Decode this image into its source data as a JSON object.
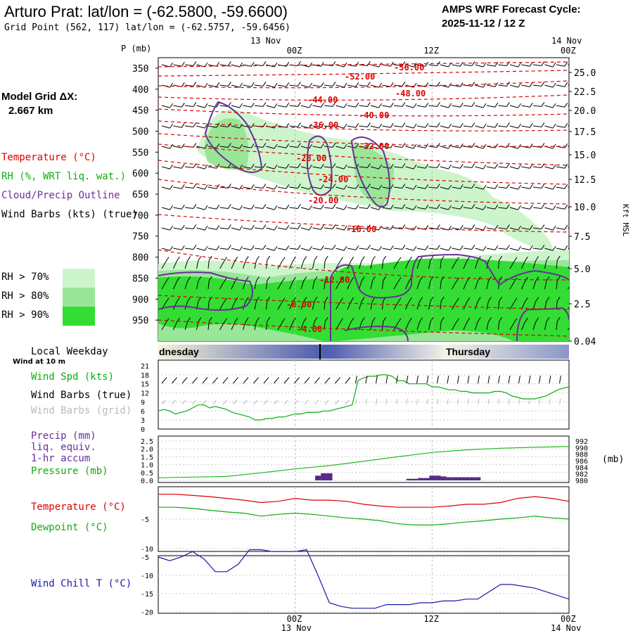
{
  "header": {
    "station_title": "Arturo Prat:  lat/lon = (-62.5800, -59.6600)",
    "grid_point": "Grid Point (562, 117) lat/lon = (-62.5757, -59.6456)",
    "forecast_label": "AMPS WRF Forecast Cycle:",
    "forecast_cycle": "2025-11-12 / 12  Z",
    "model_grid_label": "Model Grid ΔX:",
    "model_grid_value": "2.667 km"
  },
  "legend": {
    "temperature": "Temperature (°C)",
    "rh": "RH (%, WRT liq. wat.)",
    "cloud": "Cloud/Precip Outline",
    "wind_barbs": "Wind Barbs (kts) (true)",
    "rh70": "RH > 70%",
    "rh80": "RH > 80%",
    "rh90": "RH > 90%"
  },
  "colors": {
    "temperature": "#dd0000",
    "rh": "#11aa11",
    "cloud": "#6a2d9a",
    "barb": "#000000",
    "rh70": "#ccf5cc",
    "rh80": "#99e699",
    "rh90": "#33dd33",
    "wind_chill": "#1a1aaa",
    "precip": "#5a2a8a",
    "pressure_line": "#22bb22"
  },
  "time_axis": {
    "top_dates": [
      "13 Nov",
      "14 Nov"
    ],
    "top_ticks": [
      "00Z",
      "12Z",
      "00Z"
    ],
    "bottom_ticks": [
      "00Z",
      "12Z",
      "00Z"
    ],
    "bottom_dates": [
      "13 Nov",
      "14 Nov"
    ],
    "weekday_label": "Local Weekday",
    "wind_at_label": "Wind at 10 m",
    "days": [
      "dnesday",
      "Thursday"
    ]
  },
  "chart_data": [
    {
      "type": "contour",
      "title": "Vertical cross-section",
      "ylabel": "P (mb)",
      "y2label": "Kft MSL",
      "pressure_ticks": [
        "350",
        "400",
        "450",
        "500",
        "550",
        "600",
        "650",
        "700",
        "750",
        "800",
        "850",
        "900",
        "950"
      ],
      "kft_ticks": [
        "25.0",
        "22.5",
        "20.0",
        "17.5",
        "15.0",
        "12.5",
        "10.0",
        "7.5",
        "5.0",
        "2.5",
        "0.04"
      ],
      "temperature_labels": [
        "-56.00",
        "-52.00",
        "-48.00",
        "-44.00",
        "-40.00",
        "-36.00",
        "-32.00",
        "-28.00",
        "-24.00",
        "-20.00",
        "-16.00",
        "-12.00",
        "-8.00",
        "-4.00"
      ]
    },
    {
      "type": "line",
      "title": "Wind",
      "labels": [
        "Wind Spd (kts)",
        "Wind Barbs (true)",
        "Wind Barbs (grid)"
      ],
      "yticks": [
        "21",
        "18",
        "15",
        "12",
        "9",
        "6",
        "3",
        "0"
      ],
      "ylim": [
        0,
        21
      ],
      "x": [
        0,
        1,
        2,
        3,
        4,
        5,
        6,
        7,
        8,
        9,
        10,
        11,
        12,
        13,
        14,
        15,
        16,
        17,
        18,
        19,
        20,
        21,
        22,
        23,
        24,
        25,
        26,
        27,
        28,
        29,
        30,
        31,
        32,
        33,
        34,
        35,
        36,
        37,
        38,
        39,
        40,
        41,
        42,
        43,
        44,
        45,
        46,
        47,
        48,
        49,
        50,
        51,
        52,
        53,
        54,
        55,
        56,
        57,
        58,
        59,
        60,
        61,
        62,
        63,
        64,
        65,
        66,
        67,
        68,
        69,
        70,
        71,
        72
      ],
      "series": [
        {
          "name": "Wind Spd (kts)",
          "values": [
            6,
            6.5,
            6,
            5,
            5.5,
            6,
            7,
            8,
            8,
            7,
            7.5,
            7,
            6.5,
            5.5,
            5,
            4.5,
            4,
            3,
            3,
            3.5,
            3.5,
            4,
            4,
            4.5,
            5,
            5,
            5.5,
            5.5,
            5.5,
            6,
            6,
            6.5,
            7,
            7.5,
            8,
            16,
            17,
            17.5,
            17.5,
            18,
            18,
            17.5,
            16,
            16,
            15,
            15,
            15,
            15,
            14,
            14,
            13.5,
            13,
            13,
            12.5,
            12.5,
            12,
            12,
            12,
            12,
            12.5,
            12.5,
            12,
            11,
            10.5,
            10,
            10,
            10,
            10.5,
            11,
            12,
            13,
            13.5,
            14
          ]
        }
      ]
    },
    {
      "type": "bar",
      "title": "Precip / Pressure",
      "labels": [
        "Precip (mm)",
        "liq. equiv.",
        "1-hr accum",
        "Pressure (mb)"
      ],
      "yticks": [
        "2.5",
        "2.0",
        "1.5",
        "1.0",
        "0.5",
        "0.0"
      ],
      "ylim": [
        0,
        2.5
      ],
      "y2ticks": [
        "992",
        "990",
        "988",
        "986",
        "984",
        "982",
        "980"
      ],
      "y2lim": [
        980,
        992
      ],
      "y2label": "(mb)",
      "precip_x": [
        28,
        29,
        30,
        44,
        45,
        46,
        47,
        48,
        49,
        50,
        51,
        52,
        53,
        54,
        55,
        56
      ],
      "precip_values": [
        0.3,
        0.45,
        0.45,
        0.1,
        0.1,
        0.15,
        0.15,
        0.3,
        0.3,
        0.25,
        0.2,
        0.2,
        0.2,
        0.2,
        0.2,
        0.2
      ],
      "pressure_x": [
        0,
        6,
        12,
        18,
        24,
        30,
        36,
        42,
        48,
        54,
        60,
        66,
        72
      ],
      "pressure_values": [
        980.8,
        981,
        981.2,
        982.3,
        983.5,
        984.5,
        985.8,
        987.2,
        988.5,
        989.3,
        989.8,
        990.1,
        990.3
      ]
    },
    {
      "type": "line",
      "title": "Temperature / Dewpoint",
      "labels": [
        "Temperature (°C)",
        "Dewpoint (°C)"
      ],
      "yticks": [
        "-5",
        "-10"
      ],
      "ylim": [
        -10,
        0
      ],
      "x": [
        0,
        3,
        6,
        9,
        12,
        15,
        18,
        21,
        24,
        27,
        30,
        33,
        36,
        39,
        42,
        45,
        48,
        51,
        54,
        57,
        60,
        63,
        66,
        69,
        72
      ],
      "series": [
        {
          "name": "Temperature (°C)",
          "values": [
            -0.8,
            -0.8,
            -1,
            -1.2,
            -1.5,
            -1.8,
            -2.2,
            -2,
            -1.5,
            -1.8,
            -1.8,
            -2,
            -2.5,
            -2.8,
            -3,
            -3,
            -3,
            -2.8,
            -2.5,
            -2.5,
            -2.2,
            -1.5,
            -1.2,
            -1.5,
            -2
          ]
        },
        {
          "name": "Dewpoint (°C)",
          "values": [
            -3,
            -3,
            -3.2,
            -3.5,
            -3.8,
            -4,
            -4.5,
            -4.2,
            -4,
            -4.2,
            -4.5,
            -4.8,
            -5,
            -5.3,
            -5.8,
            -6,
            -6,
            -5.8,
            -5.5,
            -5.3,
            -5,
            -4.8,
            -4.5,
            -4.8,
            -5
          ]
        }
      ]
    },
    {
      "type": "line",
      "title": "Wind Chill",
      "labels": [
        "Wind Chill T (°C)"
      ],
      "yticks": [
        "-5",
        "-10",
        "-15",
        "-20"
      ],
      "ylim": [
        -20,
        -5
      ],
      "x": [
        0,
        2,
        4,
        6,
        8,
        10,
        12,
        14,
        16,
        18,
        20,
        22,
        24,
        26,
        28,
        30,
        32,
        34,
        36,
        38,
        40,
        42,
        44,
        46,
        48,
        50,
        52,
        54,
        56,
        58,
        60,
        62,
        64,
        66,
        68,
        70,
        72
      ],
      "series": [
        {
          "name": "Wind Chill T (°C)",
          "values": [
            -5,
            -6,
            -5,
            -3.5,
            -5.5,
            -9,
            -9,
            -7,
            -3,
            -3,
            -3.5,
            -3.5,
            -3.5,
            -3,
            -10,
            -17.5,
            -18.5,
            -19,
            -19,
            -19,
            -18,
            -18,
            -18,
            -17.5,
            -17.5,
            -17,
            -17,
            -16.5,
            -16.5,
            -14.5,
            -12.5,
            -12.5,
            -13,
            -13.5,
            -14.5,
            -15.5,
            -16.5
          ]
        }
      ]
    }
  ]
}
